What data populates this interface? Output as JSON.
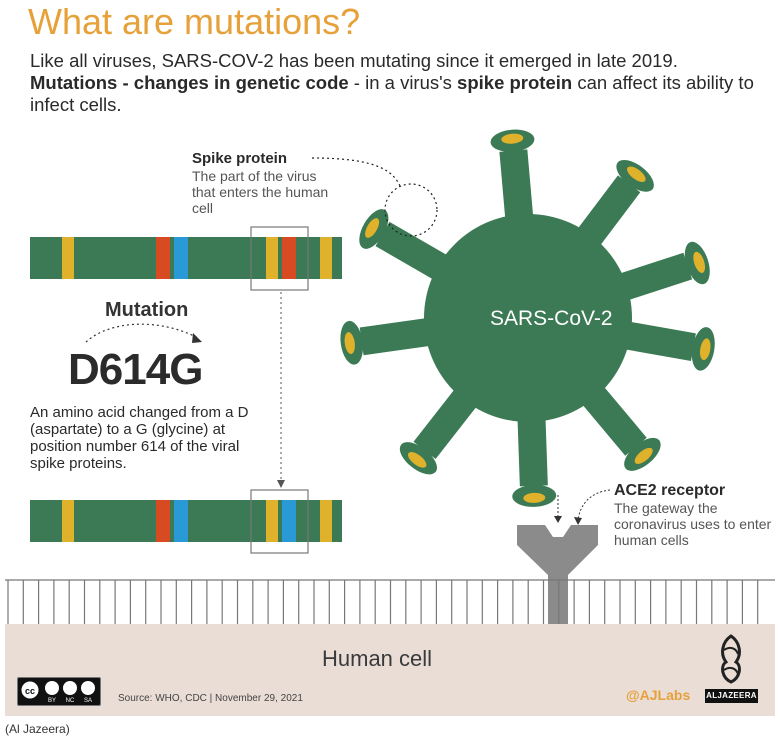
{
  "title": "What are mutations?",
  "intro": {
    "line1": "Like all viruses, SARS-COV-2 has been mutating since it emerged in late 2019.",
    "bold1": "Mutations - changes in genetic code",
    "mid": " - in a virus's ",
    "bold2": "spike protein",
    "end": " can affect its ability to infect cells."
  },
  "spike": {
    "title": "Spike protein",
    "description": "The part of the virus that enters the human cell"
  },
  "mutation": {
    "label": "Mutation",
    "code": "D614G",
    "description": "An amino acid changed from a D (aspartate) to a G (glycine) at position number 614 of the viral spike proteins."
  },
  "virus": {
    "label": "SARS-CoV-2"
  },
  "receptor": {
    "title": "ACE2 receptor",
    "description": "The gateway the coronavirus uses to enter human cells"
  },
  "cell": {
    "label": "Human cell"
  },
  "footer": {
    "source": "Source: WHO, CDC | November 29, 2021",
    "handle": "@AJLabs",
    "brand": "ALJAZEERA",
    "license": [
      "BY",
      "NC",
      "SA"
    ]
  },
  "credit": "(Al Jazeera)",
  "colors": {
    "virus_green": "#3b7a55",
    "strand_green": "#3b7a55",
    "yellow": "#e0b12b",
    "red": "#d74a22",
    "blue": "#2a9ad7",
    "accent_orange": "#e6a13a",
    "receptor_gray": "#8b8b8b",
    "cell_band": "#eaddd6"
  },
  "icons": [
    "creative-commons-icon",
    "aljazeera-logo-icon"
  ]
}
